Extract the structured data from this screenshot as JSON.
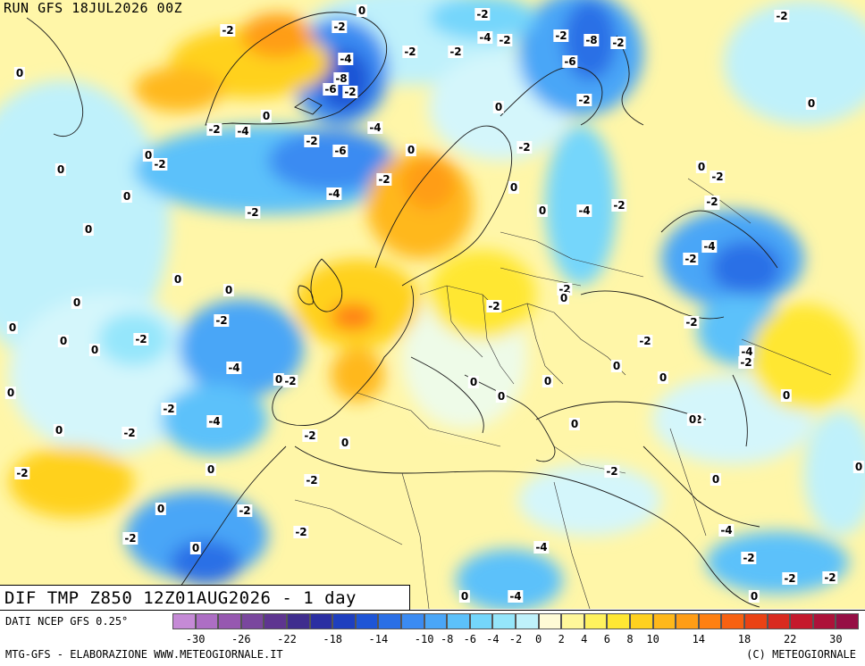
{
  "header": {
    "run_label": "RUN GFS 18JUL2026 00Z"
  },
  "title": "DIF TMP Z850 12Z01AUG2026 - 1 day",
  "source": "DATI NCEP GFS 0.25°",
  "credits": "MTG-GFS - ELABORAZIONE WWW.METEOGIORNALE.IT",
  "copyright": "(C) METEOGIORNALE",
  "legend": {
    "colors": [
      "#c58ad6",
      "#ad6ec4",
      "#9658b0",
      "#7a479e",
      "#5e3590",
      "#3f2d8e",
      "#2b2fa2",
      "#1e3fbf",
      "#1e55d6",
      "#2a6fe6",
      "#3b8bf2",
      "#4aa6f7",
      "#5cc1fa",
      "#74d6fb",
      "#95e6fb",
      "#bff1fb",
      "#fffbd6",
      "#fff79a",
      "#fff25e",
      "#ffe733",
      "#ffd11f",
      "#ffb81a",
      "#ff9d16",
      "#ff8012",
      "#f76111",
      "#ea4214",
      "#d92a1f",
      "#c5192c",
      "#ad1239",
      "#960f45"
    ],
    "tick_labels": [
      "-30",
      "-26",
      "-22",
      "-18",
      "-14",
      "-10",
      "-8",
      "-6",
      "-4",
      "-2",
      "0",
      "2",
      "4",
      "6",
      "8",
      "10",
      "14",
      "18",
      "22",
      "30"
    ]
  },
  "map_labels": [
    "-2",
    "-2",
    "-2",
    "0",
    "0",
    "-2",
    "-2",
    "-2",
    "-2",
    "-2",
    "0",
    "0",
    "-4",
    "-4",
    "-8",
    "-6",
    "-6",
    "-2",
    "-8",
    "-2",
    "-4",
    "0",
    "-2",
    "0",
    "-2",
    "0",
    "-2",
    "-2",
    "-6",
    "-4",
    "-4",
    "-2",
    "0",
    "-2",
    "0",
    "-2",
    "0",
    "0",
    "0",
    "-4",
    "-2",
    "-2",
    "-2",
    "-2",
    "0",
    "-2",
    "0",
    "0",
    "-2",
    "0",
    "-2",
    "-4",
    "-2",
    "0",
    "-4",
    "0",
    "-2",
    "-2",
    "0",
    "0",
    "0",
    "-2",
    "0",
    "-2",
    "0",
    "-2",
    "0",
    "0",
    "-4",
    "0",
    "-2",
    "0",
    "-2",
    "0",
    "-4",
    "0",
    "-2",
    "0",
    "0",
    "-2",
    "0",
    "0",
    "-2",
    "-2",
    "-2",
    "0",
    "0",
    "0",
    "-2",
    "-4",
    "-2",
    "0",
    "-2",
    "-4",
    "0",
    "-4",
    "-2",
    "-2",
    "-2",
    "0"
  ]
}
